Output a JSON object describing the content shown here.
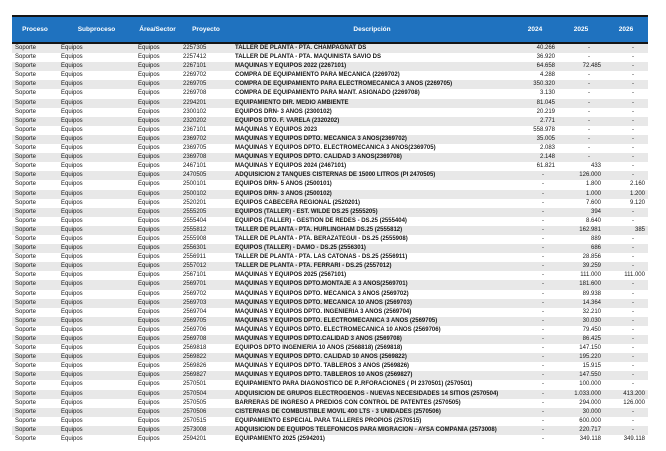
{
  "colors": {
    "header_bg": "#1f72bf",
    "header_text": "#ffffff",
    "row_stripe": "#e8e8e8",
    "rule_line": "#151515"
  },
  "table": {
    "columns": [
      {
        "key": "proceso",
        "label": "Proceso"
      },
      {
        "key": "subproceso",
        "label": "Subproceso"
      },
      {
        "key": "area",
        "label": "Área/Sector"
      },
      {
        "key": "proyecto",
        "label": "Proyecto"
      },
      {
        "key": "desc",
        "label": "Descripción"
      },
      {
        "key": "y2024",
        "label": "2024"
      },
      {
        "key": "y2025",
        "label": "2025"
      },
      {
        "key": "y2026",
        "label": "2026"
      }
    ],
    "rows": [
      [
        "Soporte",
        "Equipos",
        "Equipos",
        "2257305",
        "TALLER DE PLANTA  - PTA. CHAMPAGNAT DS",
        "40.266",
        "-",
        "-"
      ],
      [
        "Soporte",
        "Equipos",
        "Equipos",
        "2257412",
        "TALLER DE PLANTA  - PTA. MAQUINISTA SAVIO DS",
        "36.920",
        "-",
        "-"
      ],
      [
        "Soporte",
        "Equipos",
        "Equipos",
        "2267101",
        "MÁQUINAS Y EQUIPOS  2022 (2267101)",
        "64.658",
        "72.485",
        "-"
      ],
      [
        "Soporte",
        "Equipos",
        "Equipos",
        "2269702",
        "COMPRA DE EQUIPAMIENTO PARA MECANICA (2269702)",
        "4.288",
        "-",
        "-"
      ],
      [
        "Soporte",
        "Equipos",
        "Equipos",
        "2269705",
        " COMPRA DE EQUIPAMIENTO PARA ELECTROMECANICA 3 AÑOS (2269705)",
        "350.320",
        "-",
        "-"
      ],
      [
        "Soporte",
        "Equipos",
        "Equipos",
        "2269708",
        "COMPRA DE EQUIPAMIENTO PARA MANT. ASIGNADO (2269708)",
        "3.130",
        "-",
        "-"
      ],
      [
        "Soporte",
        "Equipos",
        "Equipos",
        "2294201",
        "EQUIPAMIENTO DIR. MEDIO AMBIENTE",
        "81.045",
        "-",
        "-"
      ],
      [
        "Soporte",
        "Equipos",
        "Equipos",
        "2300102",
        "EQUIPOS DRN- 3 AÑOS (2300102)",
        "20.219",
        "-",
        "-"
      ],
      [
        "Soporte",
        "Equipos",
        "Equipos",
        "2320202",
        "EQUIPOS DTO. F. VARELA (2320202)",
        "2.771",
        "-",
        "-"
      ],
      [
        "Soporte",
        "Equipos",
        "Equipos",
        "2367101",
        "MÁQUINAS Y EQUIPOS 2023",
        "558.978",
        "-",
        "-"
      ],
      [
        "Soporte",
        "Equipos",
        "Equipos",
        "2369702",
        "MAQUINAS Y EQUIPOS DPTO. MECANICA  3 AÑOS(2369702)",
        "35.005",
        "-",
        "-"
      ],
      [
        "Soporte",
        "Equipos",
        "Equipos",
        "2369705",
        "MAQUINAS Y EQUIPOS DPTO. ELECTROMECANICA  3 AÑOS(2369705)",
        "2.083",
        "-",
        "-"
      ],
      [
        "Soporte",
        "Equipos",
        "Equipos",
        "2369708",
        "MAQUINAS Y EQUIPOS DPTO. CALIDAD  3 AÑOS(2369708)",
        "2.148",
        "-",
        "-"
      ],
      [
        "Soporte",
        "Equipos",
        "Equipos",
        "2467101",
        "MÁQUINAS Y EQUIPOS 2024 (2467101)",
        "61.821",
        "433",
        "-"
      ],
      [
        "Soporte",
        "Equipos",
        "Equipos",
        "2470505",
        "ADQUISICIÓN 2 TANQUES CISTERNAS DE 15000 LITROS (PI 2470505)",
        "-",
        "126.000",
        "-"
      ],
      [
        "Soporte",
        "Equipos",
        "Equipos",
        "2500101",
        "EQUIPOS DRN- 5 AÑOS (2500101)",
        "-",
        "1.800",
        "2.160"
      ],
      [
        "Soporte",
        "Equipos",
        "Equipos",
        "2500102",
        "EQUIPOS DRN- 3 AÑOS (2500102)",
        "-",
        "1.000",
        "1.200"
      ],
      [
        "Soporte",
        "Equipos",
        "Equipos",
        "2520201",
        "EQUIPOS CABECERA REGIONAL (2520201)",
        "-",
        "7.600",
        "9.120"
      ],
      [
        "Soporte",
        "Equipos",
        "Equipos",
        "2555205",
        "EQUIPOS (TALLER) - EST. WILDE DS.25 (2555205)",
        "-",
        "394",
        "-"
      ],
      [
        "Soporte",
        "Equipos",
        "Equipos",
        "2555404",
        "EQUIPOS (TALLER) - GESTIÓN DE REDES - DS.25 (2555404)",
        "-",
        "8.640",
        "-"
      ],
      [
        "Soporte",
        "Equipos",
        "Equipos",
        "2555812",
        "TALLER DE PLANTA - PTA. HURLINGHAM DS.25 (2555812)",
        "-",
        "162.981",
        "385"
      ],
      [
        "Soporte",
        "Equipos",
        "Equipos",
        "2555908",
        "TALLER DE PLANTA  - PTA. BERAZATEGUI - DS.25 (2555908)",
        "-",
        "889",
        "-"
      ],
      [
        "Soporte",
        "Equipos",
        "Equipos",
        "2556301",
        "EQUIPOS (TALLER) - DAMO - DS.25 (2556301)",
        "-",
        "686",
        "-"
      ],
      [
        "Soporte",
        "Equipos",
        "Equipos",
        "2556911",
        "TALLER  DE PLANTA - PTA. LAS CATONAS - DS.25 (2556911)",
        "-",
        "28.856",
        "-"
      ],
      [
        "Soporte",
        "Equipos",
        "Equipos",
        "2557012",
        "TALLER DE PLANTA   - PTA. FERRARI - DS.25 (2557012)",
        "-",
        "39.259",
        "-"
      ],
      [
        "Soporte",
        "Equipos",
        "Equipos",
        "2567101",
        "MÁQUINAS Y EQUIPOS 2025 (2567101)",
        "-",
        "111.000",
        "111.000"
      ],
      [
        "Soporte",
        "Equipos",
        "Equipos",
        "2569701",
        "MAQUINAS Y EQUIPOS DPTO.MONTAJE A 3 AÑOS(2569701)",
        "-",
        "181.600",
        "-"
      ],
      [
        "Soporte",
        "Equipos",
        "Equipos",
        "2569702",
        "MAQUINAS Y EQUIPOS DPTO. MECANICA 3 AÑOS (2569702)",
        "-",
        "89.938",
        "-"
      ],
      [
        "Soporte",
        "Equipos",
        "Equipos",
        "2569703",
        "MAQUINAS Y EQUIPOS DPTO. MECANICA 10 AÑOS (2569703)",
        "-",
        "14.364",
        "-"
      ],
      [
        "Soporte",
        "Equipos",
        "Equipos",
        "2569704",
        "MAQUINAS Y EQUIPOS DPTO. INGENIERIA 3 AÑOS (2569704)",
        "-",
        "32.210",
        "-"
      ],
      [
        "Soporte",
        "Equipos",
        "Equipos",
        "2569705",
        "MAQUINAS Y EQUIPOS DPTO. ELECTROMECANICA 3 AÑOS (2569705)",
        "-",
        "30.030",
        "-"
      ],
      [
        "Soporte",
        "Equipos",
        "Equipos",
        "2569706",
        "MAQUINAS Y EQUIPOS DPTO. ELECTROMECANICA 10 AÑOS (2569706)",
        "-",
        "79.450",
        "-"
      ],
      [
        "Soporte",
        "Equipos",
        "Equipos",
        "2569708",
        "MAQUINAS Y EQUIPOS DPTO.CALIDAD 3 AÑOS (2569708)",
        "-",
        "86.425",
        "-"
      ],
      [
        "Soporte",
        "Equipos",
        "Equipos",
        "2569818",
        "EQUIPOS DPTO INGENIERIA 10 AÑOS (2568818) (2569818)",
        "-",
        "147.150",
        "-"
      ],
      [
        "Soporte",
        "Equipos",
        "Equipos",
        "2569822",
        "MAQUINAS Y EQUIPOS DPTO. CALIDAD 10 AÑOS (2569822)",
        "-",
        "195.220",
        "-"
      ],
      [
        "Soporte",
        "Equipos",
        "Equipos",
        "2569826",
        "MAQUINAS Y EQUIPOS DPTO. TABLEROS 3 AÑOS (2569826)",
        "-",
        "15.915",
        "-"
      ],
      [
        "Soporte",
        "Equipos",
        "Equipos",
        "2569827",
        "MAQUINAS Y EQUIPOS DPTO. TABLEROS 10 AÑOS (2569827)",
        "-",
        "147.550",
        "-"
      ],
      [
        "Soporte",
        "Equipos",
        "Equipos",
        "2570501",
        "EQUIPAMIENTO PARA DIAGNOSTICO DE P..RFORACIONES ( PI 2370501) (2570501)",
        "-",
        "100.000",
        "-"
      ],
      [
        "Soporte",
        "Equipos",
        "Equipos",
        "2570504",
        "ADQUISICIÓN DE GRUPOS ELECTRÓGENOS - NUEVAS NECESIDADES 14 SITIOS (2570504)",
        "-",
        "1.033.000",
        "413.200"
      ],
      [
        "Soporte",
        "Equipos",
        "Equipos",
        "2570505",
        "BARRERAS DE INGRESO A PREDIOS CON CONTROL DE PATENTES (2570505)",
        "-",
        "294.000",
        "126.000"
      ],
      [
        "Soporte",
        "Equipos",
        "Equipos",
        "2570506",
        "CISTERNAS DE COMBUSTIBLE MOVIL 400 LTS - 3 UNIDADES (2570506)",
        "-",
        "30.000",
        "-"
      ],
      [
        "Soporte",
        "Equipos",
        "Equipos",
        "2570515",
        "EQUIPAMIENTO ESPECIAL PARA TALLERES PROPIOS (2570515)",
        "-",
        "600.000",
        "-"
      ],
      [
        "Soporte",
        "Equipos",
        "Equipos",
        "2573008",
        "ADQUISICION DE EQUIPOS TELEFONICOS PARA MIGRACION - AYSA COMPAÑÍA (2573008)",
        "-",
        "220.717",
        "-"
      ],
      [
        "Soporte",
        "Equipos",
        "Equipos",
        "2594201",
        "EQUIPAMIENTO 2025 (2594201)",
        "-",
        "349.118",
        "349.118"
      ]
    ]
  }
}
